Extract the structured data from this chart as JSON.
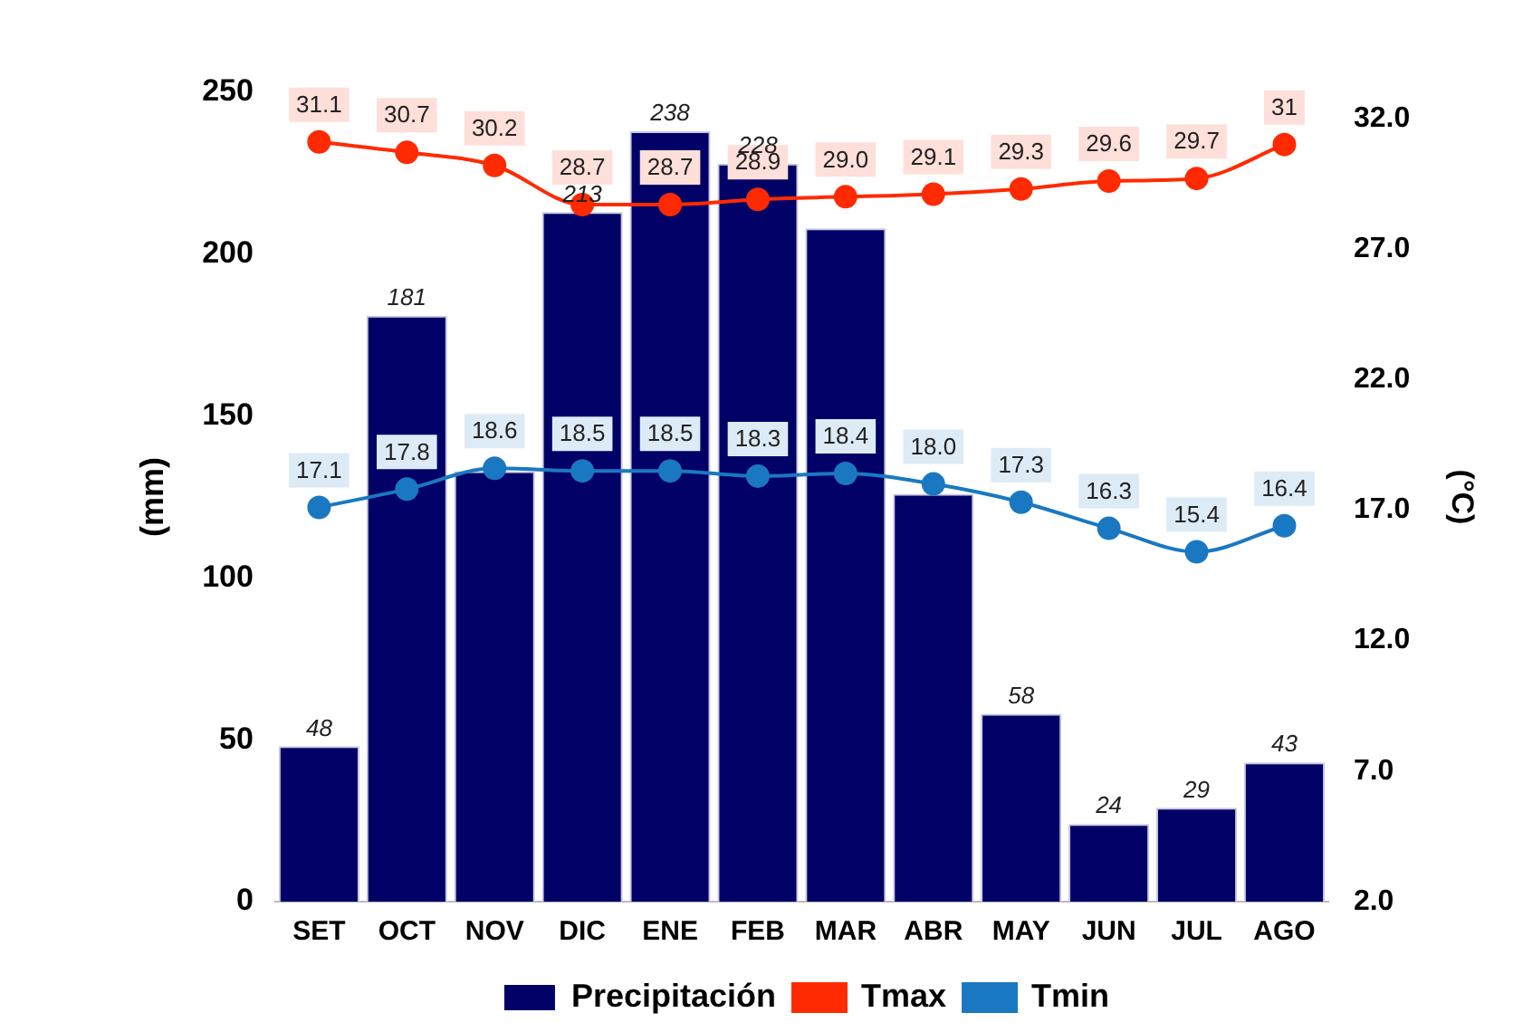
{
  "chart_data": {
    "type": "bar",
    "categories": [
      "SET",
      "OCT",
      "NOV",
      "DIC",
      "ENE",
      "FEB",
      "MAR",
      "ABR",
      "MAY",
      "JUN",
      "JUL",
      "AGO"
    ],
    "series": [
      {
        "name": "Precipitación",
        "color": "#000066",
        "values": [
          48,
          181,
          133,
          213,
          238,
          228,
          208,
          126,
          58,
          24,
          29,
          43
        ],
        "value_labels": [
          "48",
          "181",
          null,
          "213",
          "238",
          "228",
          null,
          null,
          "58",
          "24",
          "29",
          "43"
        ]
      },
      {
        "name": "Tmax",
        "type": "line",
        "axis": "y2",
        "color": "#ff2a00",
        "values": [
          31.1,
          30.7,
          30.2,
          28.7,
          28.7,
          28.9,
          29.0,
          29.1,
          29.3,
          29.6,
          29.7,
          31
        ],
        "value_labels": [
          "31.1",
          "30.7",
          "30.2",
          "28.7",
          "28.7",
          "28.9",
          "29.0",
          "29.1",
          "29.3",
          "29.6",
          "29.7",
          "31"
        ]
      },
      {
        "name": "Tmin",
        "type": "line",
        "axis": "y2",
        "color": "#1a78c2",
        "values": [
          17.1,
          17.8,
          18.6,
          18.5,
          18.5,
          18.3,
          18.4,
          18.0,
          17.3,
          16.3,
          15.4,
          16.4
        ],
        "value_labels": [
          "17.1",
          "17.8",
          "18.6",
          "18.5",
          "18.5",
          "18.3",
          "18.4",
          "18.0",
          "17.3",
          "16.3",
          "15.4",
          "16.4"
        ]
      }
    ],
    "ylabel": "(mm)",
    "y2label": "(°C)",
    "ylim": [
      0,
      250
    ],
    "yticks": [
      0,
      50,
      100,
      150,
      200,
      250
    ],
    "y2lim": [
      2,
      33
    ],
    "y2ticks": [
      {
        "value": 2,
        "label": "2.0"
      },
      {
        "value": 7,
        "label": "7.0"
      },
      {
        "value": 12,
        "label": "12.0"
      },
      {
        "value": 17,
        "label": "17.0"
      },
      {
        "value": 22,
        "label": "22.0"
      },
      {
        "value": 27,
        "label": "27.0"
      },
      {
        "value": 32,
        "label": "32.0"
      }
    ],
    "legend": "bottom",
    "marker": "circle",
    "grid": false
  }
}
